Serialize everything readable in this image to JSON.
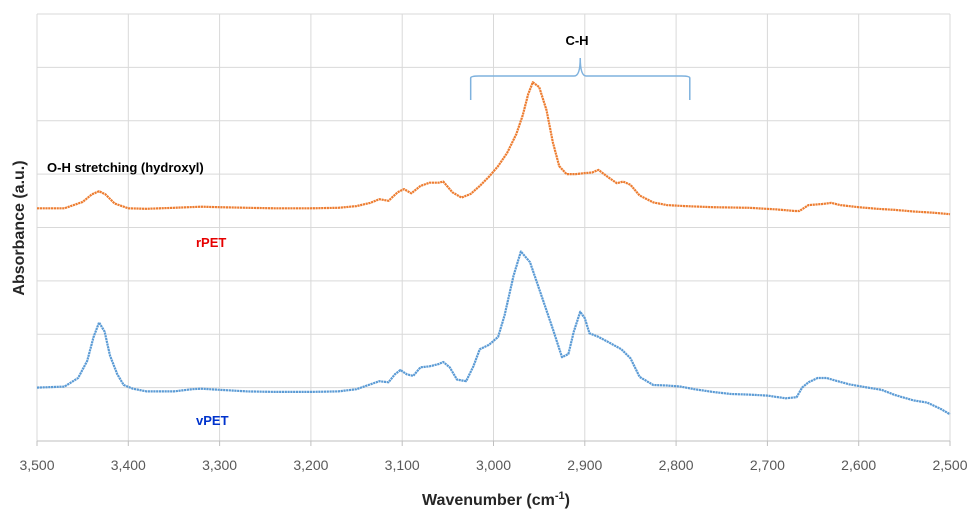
{
  "chart_data": {
    "type": "line",
    "xlabel": "Wavenumber (cm",
    "xlabel_superscript": "-1",
    "xlabel_suffix": ")",
    "ylabel": "Absorbance (a.u.)",
    "xlim": [
      3500,
      2500
    ],
    "x_reversed": true,
    "x_ticks": [
      "3,500",
      "3,400",
      "3,300",
      "3,200",
      "3,100",
      "3,000",
      "2,900",
      "2,800",
      "2,700",
      "2,600",
      "2,500"
    ],
    "x_tick_values": [
      3500,
      3400,
      3300,
      3200,
      3100,
      3000,
      2900,
      2800,
      2700,
      2600,
      2500
    ],
    "ylim": [
      0,
      8
    ],
    "y_tick_labels_shown": false,
    "grid": true,
    "legend": "none",
    "series": [
      {
        "name": "rPET",
        "color": "#ED7D31",
        "x": [
          3500,
          3470,
          3450,
          3440,
          3432,
          3425,
          3415,
          3400,
          3380,
          3350,
          3320,
          3300,
          3270,
          3240,
          3200,
          3170,
          3150,
          3135,
          3125,
          3115,
          3105,
          3098,
          3090,
          3080,
          3070,
          3060,
          3055,
          3045,
          3035,
          3025,
          3015,
          3005,
          2995,
          2985,
          2975,
          2968,
          2962,
          2957,
          2950,
          2942,
          2935,
          2928,
          2920,
          2910,
          2900,
          2892,
          2885,
          2875,
          2865,
          2858,
          2850,
          2840,
          2825,
          2810,
          2790,
          2760,
          2720,
          2690,
          2670,
          2665,
          2655,
          2640,
          2630,
          2620,
          2600,
          2580,
          2560,
          2540,
          2520,
          2500
        ],
        "y": [
          4.36,
          4.36,
          4.48,
          4.62,
          4.68,
          4.62,
          4.45,
          4.36,
          4.35,
          4.37,
          4.39,
          4.38,
          4.37,
          4.36,
          4.36,
          4.37,
          4.4,
          4.46,
          4.53,
          4.5,
          4.66,
          4.72,
          4.64,
          4.78,
          4.84,
          4.84,
          4.86,
          4.66,
          4.56,
          4.63,
          4.78,
          4.95,
          5.15,
          5.4,
          5.75,
          6.1,
          6.5,
          6.72,
          6.63,
          6.2,
          5.6,
          5.15,
          5.0,
          5.0,
          5.02,
          5.03,
          5.08,
          4.95,
          4.83,
          4.86,
          4.8,
          4.6,
          4.47,
          4.42,
          4.4,
          4.38,
          4.37,
          4.34,
          4.31,
          4.31,
          4.42,
          4.44,
          4.46,
          4.42,
          4.38,
          4.35,
          4.33,
          4.3,
          4.28,
          4.25
        ]
      },
      {
        "name": "vPET",
        "color": "#5B9BD5",
        "x": [
          3500,
          3470,
          3455,
          3445,
          3438,
          3432,
          3426,
          3420,
          3412,
          3405,
          3395,
          3380,
          3350,
          3330,
          3320,
          3300,
          3270,
          3240,
          3200,
          3170,
          3150,
          3135,
          3125,
          3115,
          3108,
          3102,
          3095,
          3088,
          3080,
          3070,
          3060,
          3055,
          3048,
          3040,
          3030,
          3022,
          3015,
          3005,
          2995,
          2988,
          2978,
          2970,
          2960,
          2952,
          2945,
          2935,
          2925,
          2918,
          2912,
          2905,
          2900,
          2895,
          2885,
          2875,
          2860,
          2850,
          2840,
          2825,
          2810,
          2795,
          2780,
          2760,
          2740,
          2720,
          2700,
          2680,
          2668,
          2662,
          2655,
          2645,
          2635,
          2625,
          2610,
          2590,
          2575,
          2560,
          2540,
          2525,
          2510,
          2500
        ],
        "y": [
          1.0,
          1.02,
          1.18,
          1.5,
          1.95,
          2.22,
          2.05,
          1.6,
          1.25,
          1.05,
          0.98,
          0.93,
          0.93,
          0.97,
          0.98,
          0.96,
          0.93,
          0.92,
          0.92,
          0.93,
          0.97,
          1.06,
          1.12,
          1.1,
          1.25,
          1.33,
          1.25,
          1.22,
          1.38,
          1.4,
          1.44,
          1.48,
          1.38,
          1.15,
          1.12,
          1.4,
          1.72,
          1.8,
          1.95,
          2.35,
          3.1,
          3.55,
          3.35,
          2.95,
          2.6,
          2.1,
          1.57,
          1.63,
          2.05,
          2.42,
          2.3,
          2.02,
          1.95,
          1.86,
          1.72,
          1.55,
          1.2,
          1.05,
          1.04,
          1.02,
          0.97,
          0.92,
          0.88,
          0.87,
          0.85,
          0.8,
          0.82,
          1.0,
          1.1,
          1.18,
          1.18,
          1.13,
          1.06,
          1.0,
          0.96,
          0.86,
          0.76,
          0.72,
          0.6,
          0.5
        ]
      }
    ],
    "annotations": [
      {
        "id": "ch",
        "text": "C-H",
        "color": "#000000"
      },
      {
        "id": "oh",
        "text": "O-H stretching  (hydroxyl)",
        "color": "#000000"
      },
      {
        "id": "rpet",
        "text": "rPET",
        "color": "#E60000"
      },
      {
        "id": "vpet",
        "text": "vPET",
        "color": "#0033CC"
      }
    ],
    "bracket": {
      "from": 3025,
      "to": 2785,
      "color": "#7FB2DE"
    }
  }
}
